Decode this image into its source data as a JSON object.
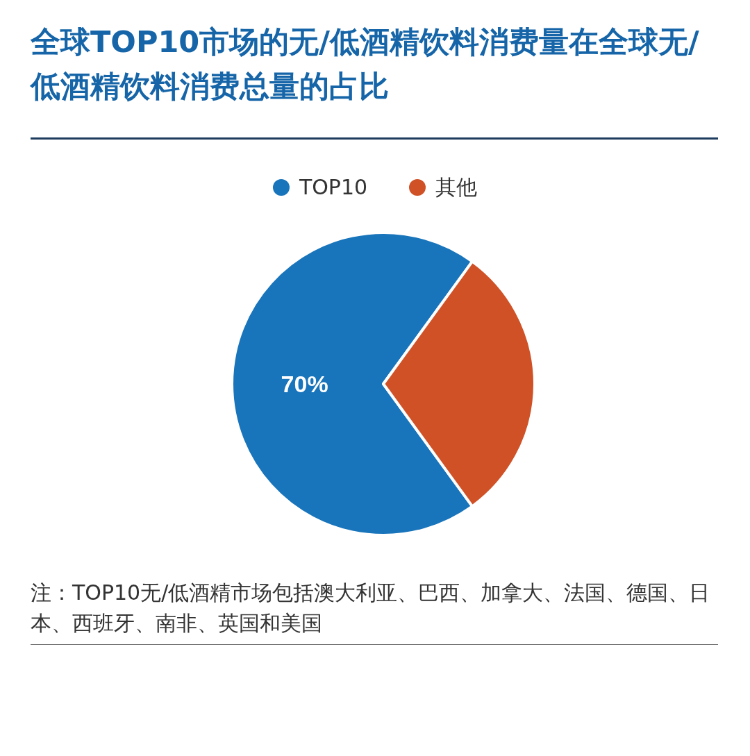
{
  "chart_data": {
    "type": "pie",
    "title": "全球TOP10市场的无/低酒精饮料消费量在全球无/低酒精饮料消费总量的占比",
    "categories": [
      "TOP10",
      "其他"
    ],
    "values": [
      70,
      30
    ],
    "colors": [
      "#1874bb",
      "#d05126"
    ],
    "value_labels": [
      "70%",
      null
    ],
    "legend": "top",
    "annotations": [
      "注：TOP10无/低酒精市场包括澳大利亚、巴西、加拿大、法国、德国、日本、西班牙、南非、英国和美国"
    ]
  }
}
